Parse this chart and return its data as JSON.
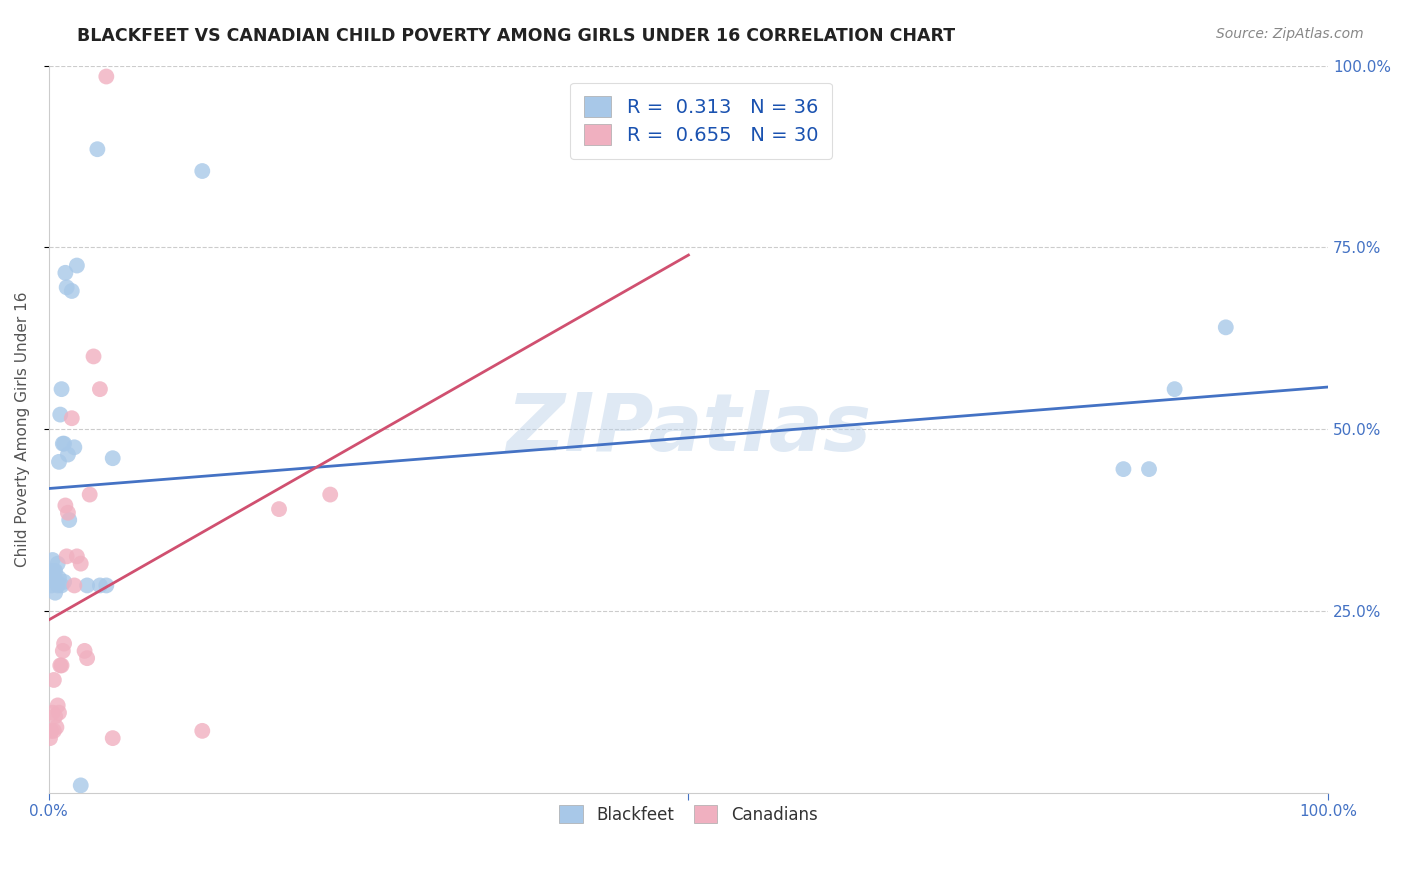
{
  "title": "BLACKFEET VS CANADIAN CHILD POVERTY AMONG GIRLS UNDER 16 CORRELATION CHART",
  "source": "Source: ZipAtlas.com",
  "ylabel": "Child Poverty Among Girls Under 16",
  "background_color": "#ffffff",
  "watermark": "ZIPatlas",
  "blackfeet_R": 0.313,
  "blackfeet_N": 36,
  "canadians_R": 0.655,
  "canadians_N": 30,
  "blackfeet_color": "#a8c8e8",
  "canadians_color": "#f0b0c0",
  "blackfeet_line_color": "#4472c4",
  "canadians_line_color": "#d05070",
  "blackfeet_x": [
    0.001,
    0.002,
    0.003,
    0.003,
    0.004,
    0.005,
    0.005,
    0.006,
    0.007,
    0.007,
    0.008,
    0.008,
    0.009,
    0.01,
    0.01,
    0.011,
    0.012,
    0.012,
    0.013,
    0.014,
    0.015,
    0.016,
    0.018,
    0.02,
    0.022,
    0.025,
    0.03,
    0.038,
    0.04,
    0.045,
    0.05,
    0.12,
    0.84,
    0.86,
    0.88,
    0.92
  ],
  "blackfeet_y": [
    0.295,
    0.285,
    0.305,
    0.32,
    0.305,
    0.275,
    0.305,
    0.29,
    0.285,
    0.315,
    0.455,
    0.295,
    0.52,
    0.555,
    0.285,
    0.48,
    0.48,
    0.29,
    0.715,
    0.695,
    0.465,
    0.375,
    0.69,
    0.475,
    0.725,
    0.01,
    0.285,
    0.885,
    0.285,
    0.285,
    0.46,
    0.855,
    0.445,
    0.445,
    0.555,
    0.64
  ],
  "canadians_x": [
    0.001,
    0.002,
    0.003,
    0.004,
    0.004,
    0.005,
    0.006,
    0.007,
    0.008,
    0.009,
    0.01,
    0.011,
    0.012,
    0.013,
    0.014,
    0.015,
    0.018,
    0.02,
    0.022,
    0.025,
    0.028,
    0.03,
    0.032,
    0.035,
    0.04,
    0.045,
    0.05,
    0.12,
    0.18,
    0.22
  ],
  "canadians_y": [
    0.075,
    0.085,
    0.11,
    0.155,
    0.085,
    0.105,
    0.09,
    0.12,
    0.11,
    0.175,
    0.175,
    0.195,
    0.205,
    0.395,
    0.325,
    0.385,
    0.515,
    0.285,
    0.325,
    0.315,
    0.195,
    0.185,
    0.41,
    0.6,
    0.555,
    0.985,
    0.075,
    0.085,
    0.39,
    0.41
  ],
  "xlim": [
    0.0,
    1.0
  ],
  "ylim": [
    0.0,
    1.0
  ],
  "grid_color": "#cccccc",
  "spine_color": "#cccccc",
  "tick_color": "#4472c4"
}
